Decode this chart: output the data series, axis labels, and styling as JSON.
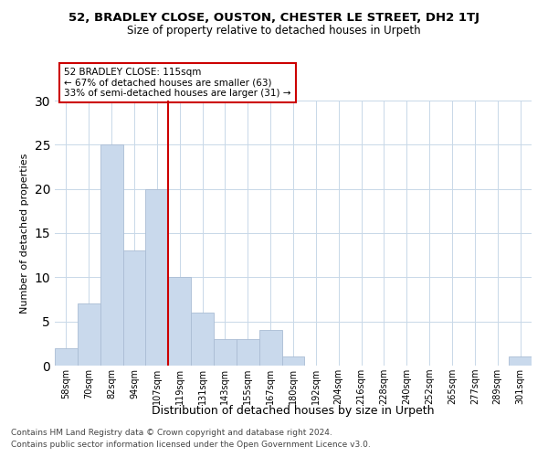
{
  "title1": "52, BRADLEY CLOSE, OUSTON, CHESTER LE STREET, DH2 1TJ",
  "title2": "Size of property relative to detached houses in Urpeth",
  "xlabel": "Distribution of detached houses by size in Urpeth",
  "ylabel": "Number of detached properties",
  "bin_labels": [
    "58sqm",
    "70sqm",
    "82sqm",
    "94sqm",
    "107sqm",
    "119sqm",
    "131sqm",
    "143sqm",
    "155sqm",
    "167sqm",
    "180sqm",
    "192sqm",
    "204sqm",
    "216sqm",
    "228sqm",
    "240sqm",
    "252sqm",
    "265sqm",
    "277sqm",
    "289sqm",
    "301sqm"
  ],
  "bar_values": [
    2,
    7,
    25,
    13,
    20,
    10,
    6,
    3,
    3,
    4,
    1,
    0,
    0,
    0,
    0,
    0,
    0,
    0,
    0,
    0,
    1
  ],
  "bar_color": "#c9d9ec",
  "bar_edge_color": "#aabdd4",
  "vline_x_index": 4,
  "vline_color": "#cc0000",
  "ylim": [
    0,
    30
  ],
  "yticks": [
    0,
    5,
    10,
    15,
    20,
    25,
    30
  ],
  "annotation_title": "52 BRADLEY CLOSE: 115sqm",
  "annotation_line1": "← 67% of detached houses are smaller (63)",
  "annotation_line2": "33% of semi-detached houses are larger (31) →",
  "annotation_box_color": "#ffffff",
  "annotation_box_edge": "#cc0000",
  "footer_line1": "Contains HM Land Registry data © Crown copyright and database right 2024.",
  "footer_line2": "Contains public sector information licensed under the Open Government Licence v3.0.",
  "background_color": "#ffffff",
  "grid_color": "#c8d8e8"
}
